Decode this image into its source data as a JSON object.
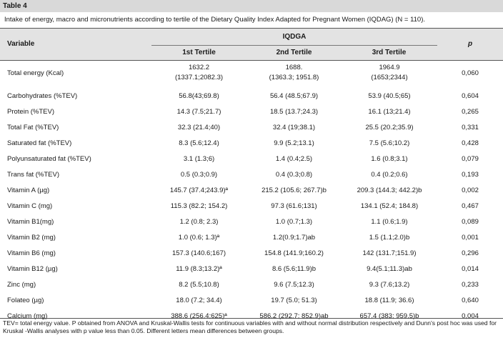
{
  "table_label": "Table 4",
  "caption": "Intake of energy, macro and micronutrients according to tertile of the Dietary Quality Index Adapted for Pregnant Women (IQDAG) (N = 110).",
  "header": {
    "variable": "Variable",
    "group": "IQDGA",
    "tertiles": [
      "1st Tertile",
      "2nd Tertile",
      "3rd Tertile"
    ],
    "p": "p"
  },
  "rows": [
    {
      "variable": "Total energy (Kcal)",
      "t1": "1632.2\n(1337.1;2082.3)",
      "t2": "1688.\n(1363.3; 1951.8)",
      "t3": "1964.9\n(1653;2344)",
      "p": "0,060"
    },
    {
      "variable": "Carbohydrates (%TEV)",
      "t1": "56.8(43;69.8)",
      "t2": "56.4 (48.5;67.9)",
      "t3": "53.9 (40.5;65)",
      "p": "0,604"
    },
    {
      "variable": "Protein (%TEV)",
      "t1": "14.3 (7.5;21.7)",
      "t2": "18.5 (13.7;24.3)",
      "t3": "16.1 (13;21.4)",
      "p": "0,265"
    },
    {
      "variable": "Total Fat (%TEV)",
      "t1": "32.3 (21.4;40)",
      "t2": "32.4 (19;38.1)",
      "t3": "25.5 (20.2;35.9)",
      "p": "0,331"
    },
    {
      "variable": "Saturated fat (%TEV)",
      "t1": "8.3 (5.6;12.4)",
      "t2": "9.9 (5.2;13.1)",
      "t3": "7.5 (5.6;10.2)",
      "p": "0,428"
    },
    {
      "variable": "Polyunsaturated fat (%TEV)",
      "t1": "3.1 (1.3;6)",
      "t2": "1.4 (0.4;2.5)",
      "t3": "1.6 (0.8;3.1)",
      "p": "0,079"
    },
    {
      "variable": "Trans fat (%TEV)",
      "t1": "0.5 (0.3;0.9)",
      "t2": "0.4 (0.3;0.8)",
      "t3": "0.4 (0.2;0.6)",
      "p": "0,193"
    },
    {
      "variable": "Vitamin A (µg)",
      "t1": "145.7 (37.4;243.9)ª",
      "t2": "215.2 (105.6; 267.7)b",
      "t3": "209.3 (144.3; 442.2)b",
      "p": "0,002"
    },
    {
      "variable": "Vitamin C (mg)",
      "t1": "115.3 (82.2; 154.2)",
      "t2": "97.3 (61.6;131)",
      "t3": "134.1 (52.4; 184.8)",
      "p": "0,467"
    },
    {
      "variable": "Vitamin B1(mg)",
      "t1": "1.2 (0.8; 2.3)",
      "t2": "1.0 (0.7;1.3)",
      "t3": "1.1 (0.6;1.9)",
      "p": "0,089"
    },
    {
      "variable": "Vitamin B2 (mg)",
      "t1": "1.0 (0.6; 1.3)ª",
      "t2": "1.2(0.9;1.7)ab",
      "t3": "1.5 (1.1;2.0)b",
      "p": "0,001"
    },
    {
      "variable": "Vitamin B6 (mg)",
      "t1": "157.3 (140.6;167)",
      "t2": "154.8 (141.9;160.2)",
      "t3": "142 (131.7;151.9)",
      "p": "0,296"
    },
    {
      "variable": "Vitamin B12 (µg)",
      "t1": "11.9 (8.3;13.2)ª",
      "t2": "8.6 (5.6;11.9)b",
      "t3": "9.4(5.1;11.3)ab",
      "p": "0,014"
    },
    {
      "variable": "Zinc (mg)",
      "t1": "8.2 (5.5;10.8)",
      "t2": "9.6 (7.5;12.3)",
      "t3": "9.3 (7.6;13.2)",
      "p": "0,233"
    },
    {
      "variable": "Folateo (µg)",
      "t1": "18.0 (7.2; 34.4)",
      "t2": "19.7 (5.0; 51.3)",
      "t3": "18.8 (11.9; 36.6)",
      "p": "0,640"
    },
    {
      "variable": "Calcium (mg)",
      "t1": "388.6 (256.4;625)ª",
      "t2": "586.2 (292.7; 852.9)ab",
      "t3": "657.4 (383; 959.5)b",
      "p": "0,004"
    }
  ],
  "footnote": "TEV= total energy value. P obtained from ANOVA and Kruskal-Wallis tests for continuous variables with and without normal distribution respectively and Dunn's post hoc was used for Kruskal -Wallis analyses with p value less than 0.05. Different letters mean differences between groups."
}
